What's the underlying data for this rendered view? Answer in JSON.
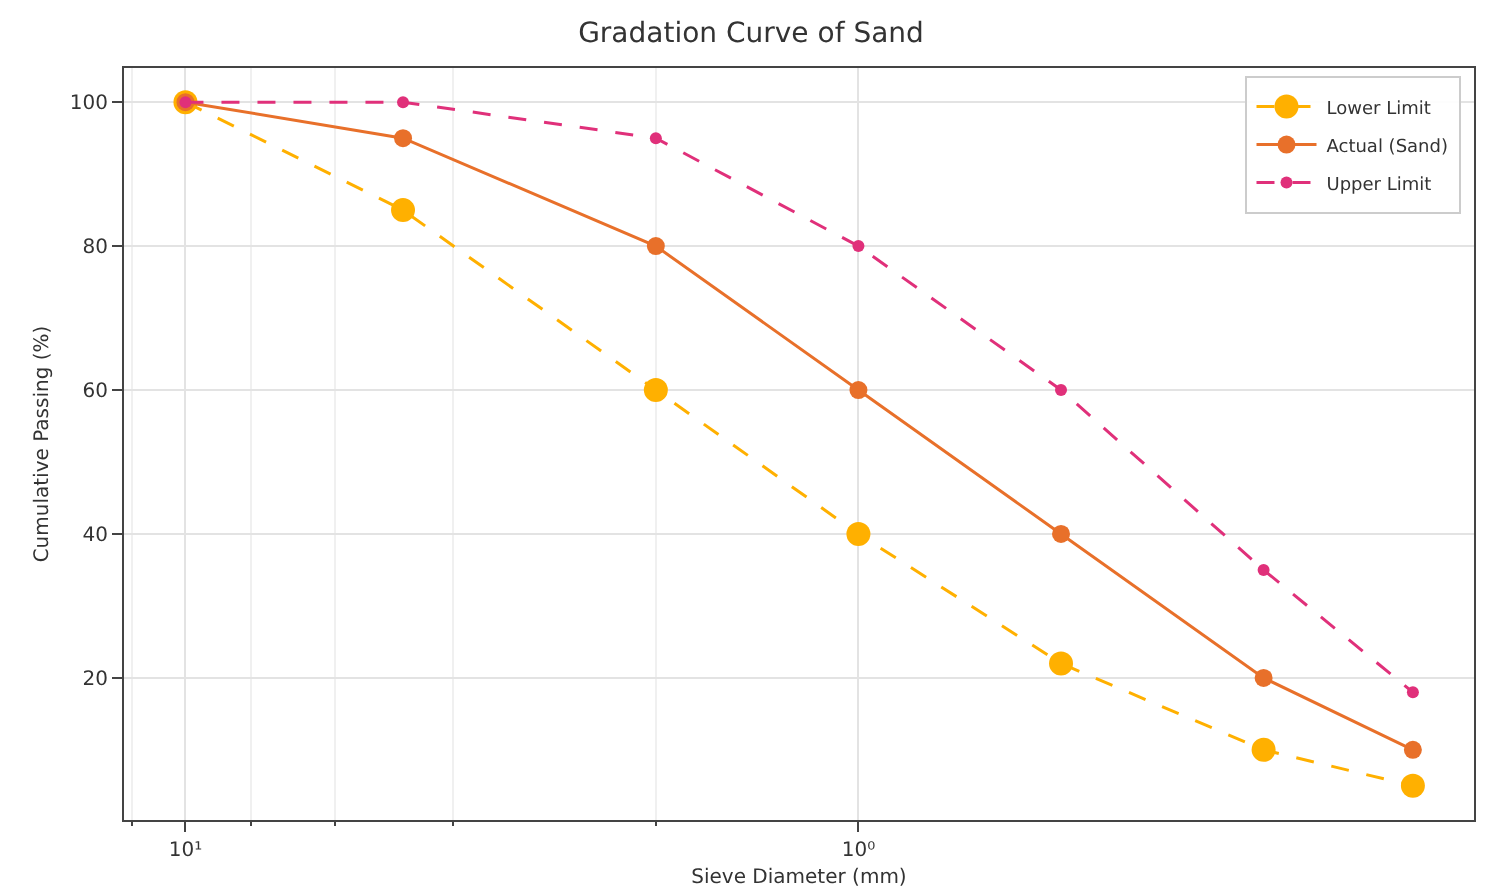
{
  "chart_data": {
    "type": "line",
    "title": "Gradation Curve of Sand",
    "xlabel": "Sieve Diameter (mm)",
    "ylabel": "Cumulative Passing (%)",
    "x": [
      10,
      4.75,
      2,
      1,
      0.5,
      0.25,
      0.15
    ],
    "series": [
      {
        "name": "Lower Limit",
        "color": "#ffb000",
        "line_style": "dashed",
        "values": [
          100,
          85,
          60,
          40,
          22,
          10,
          5
        ]
      },
      {
        "name": "Actual (Sand)",
        "color": "#e8702a",
        "line_style": "solid",
        "values": [
          100,
          95,
          80,
          60,
          40,
          20,
          10
        ]
      },
      {
        "name": "Upper Limit",
        "color": "#e0307a",
        "line_style": "dashed",
        "values": [
          100,
          100,
          95,
          80,
          60,
          35,
          18
        ]
      }
    ],
    "log": "x",
    "xlim": [
      12.34,
      0.1217
    ],
    "xticks": [
      {
        "value": 10,
        "label": "10¹"
      },
      {
        "value": 1,
        "label": "10⁰"
      }
    ],
    "ylim": [
      0.25,
      104.75
    ],
    "yticks": [
      20,
      40,
      60,
      80,
      100
    ],
    "grid": true,
    "legend": "top right",
    "marker": "circle"
  }
}
